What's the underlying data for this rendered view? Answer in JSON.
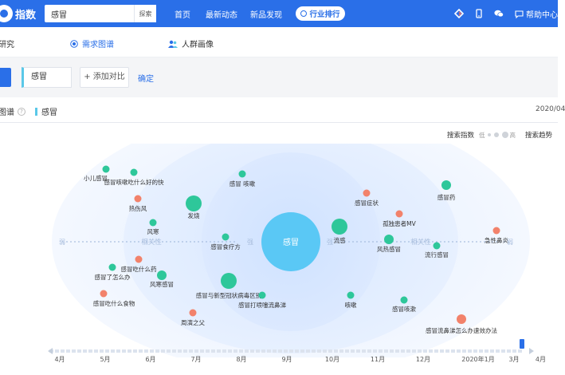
{
  "header": {
    "logo_text": "指数",
    "search_value": "感冒",
    "search_button": "探索",
    "nav": [
      "首页",
      "最新动态",
      "新品发现"
    ],
    "pill": "行业排行",
    "help": "帮助中心"
  },
  "subtabs": [
    {
      "label": "研究",
      "icon": "none"
    },
    {
      "label": "需求图谱",
      "icon": "target-icon"
    },
    {
      "label": "人群画像",
      "icon": "people-icon"
    }
  ],
  "compare": {
    "keyword": "感冒",
    "add_label": "+ 添加对比",
    "confirm": "确定"
  },
  "graph_header": {
    "title": "图谱",
    "help_mark": "?",
    "keyword": "感冒",
    "date": "2020/04"
  },
  "legend": {
    "search_index": "搜索指数",
    "low": "低",
    "high": "高",
    "trend": "搜索趋势"
  },
  "colors": {
    "brand": "#2a6fe8",
    "center": "#5ac8f5",
    "rise": "#f2826b",
    "fall": "#2ec79a"
  },
  "graph": {
    "center": "感冒",
    "left_label": "相关性",
    "right_label": "相关性",
    "left_end": "弱",
    "left_mid": "强",
    "right_mid": "强",
    "right_end": "弱",
    "nodes": [
      {
        "label": "小儿感冒",
        "trend": "fall",
        "size": "small"
      },
      {
        "label": "感冒咳嗽吃什么好的快",
        "trend": "fall",
        "size": "small"
      },
      {
        "label": "感冒 咳嗽",
        "trend": "fall",
        "size": "small"
      },
      {
        "label": "热伤风",
        "trend": "rise",
        "size": "small"
      },
      {
        "label": "发烧",
        "trend": "fall",
        "size": "large"
      },
      {
        "label": "风寒",
        "trend": "fall",
        "size": "small"
      },
      {
        "label": "感冒食疗方",
        "trend": "fall",
        "size": "small"
      },
      {
        "label": "感冒吃什么药",
        "trend": "rise",
        "size": "small"
      },
      {
        "label": "感冒了怎么办",
        "trend": "fall",
        "size": "small"
      },
      {
        "label": "风寒感冒",
        "trend": "fall",
        "size": "medium"
      },
      {
        "label": "感冒吃什么食物",
        "trend": "rise",
        "size": "small"
      },
      {
        "label": "感冒与新型冠状病毒区别",
        "trend": "fall",
        "size": "large"
      },
      {
        "label": "感冒打喷嚏流鼻涕",
        "trend": "fall",
        "size": "small"
      },
      {
        "label": "周演之父",
        "trend": "rise",
        "size": "small"
      },
      {
        "label": "流感",
        "trend": "fall",
        "size": "large"
      },
      {
        "label": "感冒症状",
        "trend": "rise",
        "size": "small"
      },
      {
        "label": "孤独患者MV",
        "trend": "rise",
        "size": "small"
      },
      {
        "label": "风热感冒",
        "trend": "fall",
        "size": "medium"
      },
      {
        "label": "感冒药",
        "trend": "fall",
        "size": "medium"
      },
      {
        "label": "流行感冒",
        "trend": "fall",
        "size": "small"
      },
      {
        "label": "急性鼻炎",
        "trend": "rise",
        "size": "small"
      },
      {
        "label": "咳嗽",
        "trend": "fall",
        "size": "small"
      },
      {
        "label": "感冒咳漱",
        "trend": "fall",
        "size": "small"
      },
      {
        "label": "感冒流鼻涕怎么办速效办法",
        "trend": "rise",
        "size": "medium"
      }
    ]
  },
  "timeline": {
    "labels": [
      "4月",
      "5月",
      "6月",
      "7月",
      "8月",
      "9月",
      "10月",
      "11月",
      "12月",
      "2020年1月",
      "3月",
      "4月"
    ]
  }
}
